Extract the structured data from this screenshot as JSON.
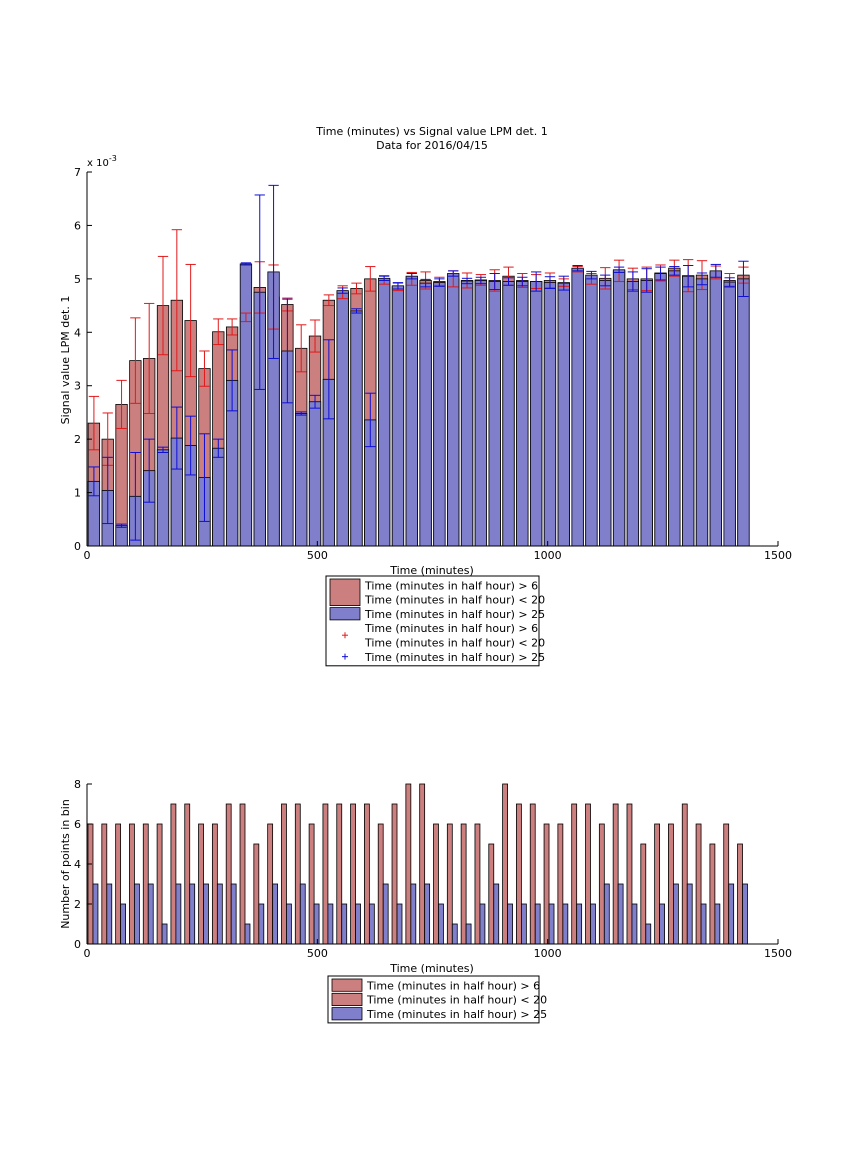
{
  "chart_data": [
    {
      "type": "bar",
      "title": "Time (minutes) vs Signal value LPM det. 1",
      "subtitle": "Data for 2016/04/15",
      "xlabel": "Time (minutes)",
      "ylabel": "Signal value LPM det. 1",
      "y_exponent_label": "x 10",
      "y_exponent_power": "-3",
      "xlim": [
        0,
        1500
      ],
      "ylim": [
        0,
        7
      ],
      "xticks": [
        "0",
        "500",
        "1000",
        "1500"
      ],
      "yticks": [
        "0",
        "1",
        "2",
        "3",
        "4",
        "5",
        "6",
        "7"
      ],
      "grid": false,
      "legend_position": "below",
      "x": [
        15,
        45,
        75,
        105,
        135,
        165,
        195,
        225,
        255,
        285,
        315,
        345,
        375,
        405,
        435,
        465,
        495,
        525,
        555,
        585,
        615,
        645,
        675,
        705,
        735,
        765,
        795,
        825,
        855,
        885,
        915,
        945,
        975,
        1005,
        1035,
        1065,
        1095,
        1125,
        1155,
        1185,
        1215,
        1245,
        1275,
        1305,
        1335,
        1365,
        1395,
        1425
      ],
      "series": [
        {
          "name": "Time (minutes in half hour) > 6\nTime (minutes in half hour) < 20",
          "color": "#cc7f7f",
          "error_color": "#e0191a",
          "values": [
            2.3,
            2.0,
            2.65,
            3.47,
            3.51,
            4.5,
            4.6,
            4.22,
            3.32,
            4.01,
            4.1,
            4.28,
            4.84,
            4.66,
            4.52,
            3.7,
            3.93,
            4.6,
            4.75,
            4.82,
            5.0,
            4.98,
            4.85,
            5.0,
            4.97,
            4.95,
            5.0,
            4.97,
            4.98,
            4.97,
            5.05,
            4.97,
            4.95,
            4.97,
            4.93,
            5.18,
            5.0,
            5.01,
            5.15,
            5.0,
            5.0,
            5.11,
            5.2,
            5.06,
            5.07,
            5.12,
            4.97,
            5.07
          ],
          "errors": [
            0.5,
            0.49,
            0.45,
            0.8,
            1.03,
            0.92,
            1.32,
            1.05,
            0.33,
            0.24,
            0.15,
            0.08,
            0.48,
            0.6,
            0.12,
            0.44,
            0.3,
            0.1,
            0.12,
            0.1,
            0.23,
            0.08,
            0.07,
            0.12,
            0.16,
            0.08,
            0.15,
            0.14,
            0.1,
            0.2,
            0.17,
            0.13,
            0.13,
            0.14,
            0.07,
            0.05,
            0.1,
            0.2,
            0.2,
            0.2,
            0.22,
            0.15,
            0.15,
            0.3,
            0.27,
            0.12,
            0.13,
            0.15
          ]
        },
        {
          "name": "Time (minutes in half hour) > 25",
          "color": "#7f7fcc",
          "error_color": "#0f0fd6",
          "values": [
            1.21,
            1.04,
            0.38,
            0.93,
            1.41,
            1.8,
            2.02,
            1.88,
            1.28,
            1.83,
            3.1,
            5.28,
            4.75,
            5.13,
            3.65,
            2.48,
            2.7,
            3.12,
            4.78,
            4.4,
            2.36,
            5.01,
            4.87,
            5.05,
            4.92,
            4.93,
            5.1,
            4.96,
            4.97,
            4.95,
            4.95,
            4.95,
            4.95,
            4.93,
            4.92,
            5.2,
            5.07,
            4.97,
            5.17,
            4.95,
            4.97,
            5.1,
            5.15,
            5.05,
            5.0,
            5.15,
            4.94,
            5.0
          ],
          "errors": [
            0.27,
            0.62,
            0.03,
            0.82,
            0.59,
            0.05,
            0.58,
            0.55,
            0.82,
            0.17,
            0.57,
            0.02,
            1.82,
            1.62,
            0.97,
            0.03,
            0.12,
            0.74,
            0.05,
            0.04,
            0.5,
            0.04,
            0.06,
            0.05,
            0.07,
            0.07,
            0.05,
            0.05,
            0.06,
            0.15,
            0.07,
            0.08,
            0.18,
            0.11,
            0.13,
            0.05,
            0.07,
            0.1,
            0.05,
            0.18,
            0.22,
            0.12,
            0.08,
            0.2,
            0.11,
            0.12,
            0.08,
            0.33
          ]
        }
      ]
    },
    {
      "type": "bar",
      "title": "",
      "xlabel": "Time (minutes)",
      "ylabel": "Number of points in bin",
      "xlim": [
        0,
        1500
      ],
      "ylim": [
        0,
        8
      ],
      "xticks": [
        "0",
        "500",
        "1000",
        "1500"
      ],
      "yticks": [
        "0",
        "2",
        "4",
        "6",
        "8"
      ],
      "grid": false,
      "legend_position": "below",
      "x": [
        15,
        45,
        75,
        105,
        135,
        165,
        195,
        225,
        255,
        285,
        315,
        345,
        375,
        405,
        435,
        465,
        495,
        525,
        555,
        585,
        615,
        645,
        675,
        705,
        735,
        765,
        795,
        825,
        855,
        885,
        915,
        945,
        975,
        1005,
        1035,
        1065,
        1095,
        1125,
        1155,
        1185,
        1215,
        1245,
        1275,
        1305,
        1335,
        1365,
        1395,
        1425
      ],
      "series": [
        {
          "name": "Time (minutes in half hour) > 6\nTime (minutes in half hour) < 20",
          "color": "#cc7f7f",
          "values": [
            6,
            6,
            6,
            6,
            6,
            6,
            7,
            7,
            6,
            6,
            7,
            7,
            5,
            6,
            7,
            7,
            6,
            7,
            7,
            7,
            7,
            6,
            7,
            8,
            8,
            6,
            6,
            6,
            6,
            5,
            8,
            7,
            7,
            6,
            6,
            7,
            7,
            6,
            7,
            7,
            5,
            6,
            6,
            7,
            6,
            5,
            6,
            5
          ]
        },
        {
          "name": "Time (minutes in half hour) > 25",
          "color": "#7f7fcc",
          "values": [
            3,
            3,
            2,
            3,
            3,
            1,
            3,
            3,
            3,
            3,
            3,
            1,
            2,
            3,
            2,
            3,
            2,
            2,
            2,
            2,
            2,
            3,
            2,
            3,
            3,
            2,
            1,
            1,
            2,
            3,
            2,
            2,
            2,
            2,
            2,
            2,
            2,
            3,
            3,
            2,
            1,
            2,
            3,
            3,
            2,
            2,
            3,
            3
          ]
        }
      ]
    }
  ],
  "legends": [
    {
      "entries": [
        {
          "label": "Time (minutes in half hour) > 6",
          "label2": "Time (minutes in half hour) < 20",
          "kind": "patch",
          "color": "#cc7f7f"
        },
        {
          "label": "Time (minutes in half hour) > 25",
          "label2": "",
          "kind": "patch",
          "color": "#7f7fcc"
        },
        {
          "label": "Time (minutes in half hour) > 6",
          "label2": "Time (minutes in half hour) < 20",
          "kind": "plus",
          "color": "#e0191a"
        },
        {
          "label": "Time (minutes in half hour) > 25",
          "label2": "",
          "kind": "plus",
          "color": "#0f0fd6"
        }
      ]
    },
    {
      "entries": [
        {
          "label": "Time (minutes in half hour) > 6",
          "label2": "",
          "kind": "patch",
          "color": "#cc7f7f"
        },
        {
          "label": "Time (minutes in half hour) < 20",
          "label2": "",
          "kind": "patch",
          "color": "#cc7f7f"
        },
        {
          "label": "Time (minutes in half hour) > 25",
          "label2": "",
          "kind": "patch",
          "color": "#7f7fcc"
        }
      ]
    }
  ]
}
